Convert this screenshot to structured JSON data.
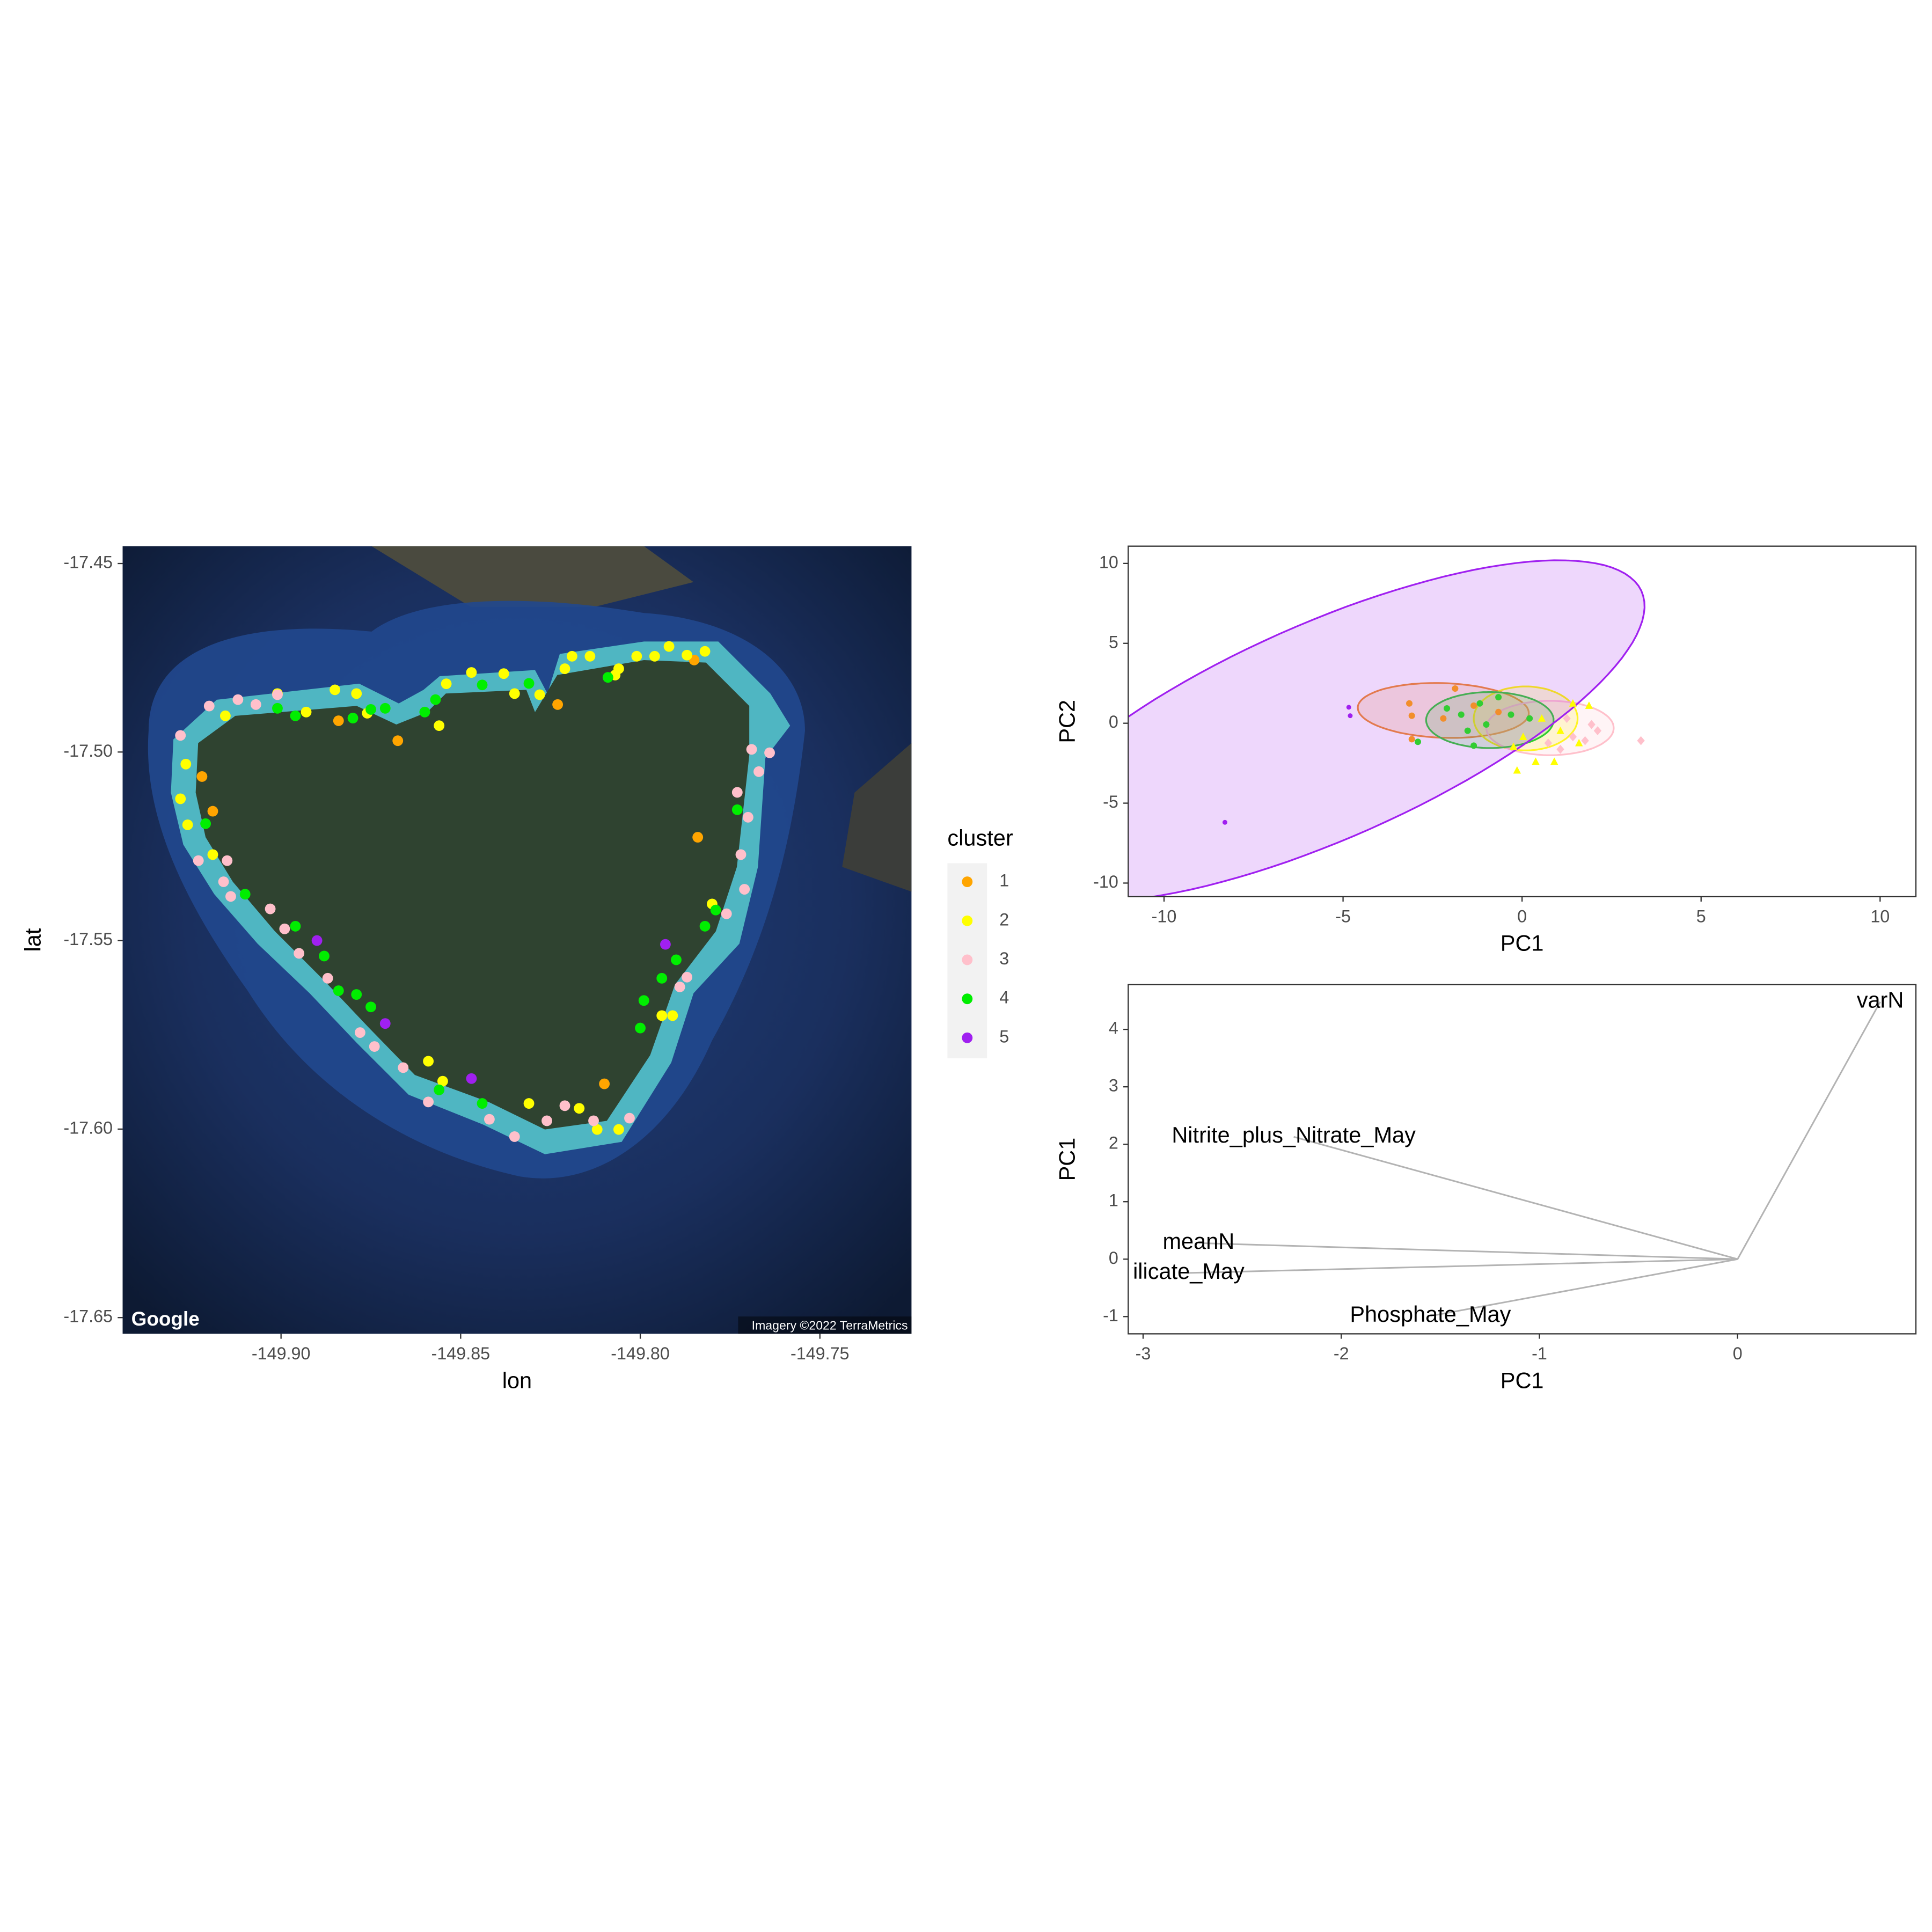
{
  "chart_data": [
    {
      "type": "scatter",
      "x_label": "lon",
      "y_label": "lat",
      "xlim": [
        -149.9441,
        -149.7245
      ],
      "ylim": [
        -17.6543,
        -17.4454
      ],
      "xticks": [
        {
          "value": -149.9,
          "label": "-149.90"
        },
        -149.85,
        {
          "value": -149.8,
          "label": "-149.80"
        },
        -149.75
      ],
      "yticks": [
        -17.45,
        {
          "value": -17.5,
          "label": "-17.50"
        },
        -17.55,
        {
          "value": -17.6,
          "label": "-17.60"
        },
        -17.65
      ],
      "legend": {
        "title": "cluster",
        "position": "right"
      },
      "credits": [
        "Google",
        "Imagery ©2022 TerraMetrics"
      ],
      "series": [
        {
          "name": "1",
          "color": "#ffa500",
          "x": [
            -149.884,
            -149.8675,
            -149.922,
            -149.919,
            -149.823,
            -149.784,
            -149.81,
            -149.785
          ],
          "y": [
            -17.4917,
            -17.497,
            -17.5065,
            -17.5157,
            -17.4874,
            -17.5226,
            -17.588,
            -17.4756
          ]
        },
        {
          "name": "2",
          "color": "#ffff00",
          "x": [
            -149.9155,
            -149.901,
            -149.893,
            -149.885,
            -149.879,
            -149.876,
            -149.9265,
            -149.928,
            -149.926,
            -149.919,
            -149.854,
            -149.847,
            -149.838,
            -149.835,
            -149.856,
            -149.828,
            -149.821,
            -149.819,
            -149.814,
            -149.806,
            -149.801,
            -149.796,
            -149.792,
            -149.782,
            -149.807,
            -149.787,
            -149.794,
            -149.791,
            -149.78,
            -149.855,
            -149.859,
            -149.831,
            -149.817,
            -149.812,
            -149.806
          ],
          "y": [
            -17.4904,
            -17.4845,
            -17.4894,
            -17.4835,
            -17.4845,
            -17.4897,
            -17.5032,
            -17.5124,
            -17.5193,
            -17.5272,
            -17.4819,
            -17.4789,
            -17.4792,
            -17.4845,
            -17.493,
            -17.4848,
            -17.4779,
            -17.4746,
            -17.4746,
            -17.4779,
            -17.4746,
            -17.4746,
            -17.472,
            -17.4733,
            -17.4796,
            -17.4743,
            -17.5699,
            -17.5699,
            -17.5403,
            -17.5873,
            -17.582,
            -17.5932,
            -17.5945,
            -17.6001,
            -17.6001
          ]
        },
        {
          "name": "3",
          "color": "#ffc0cb",
          "x": [
            -149.928,
            -149.92,
            -149.912,
            -149.907,
            -149.901,
            -149.923,
            -149.915,
            -149.916,
            -149.914,
            -149.903,
            -149.899,
            -149.895,
            -149.887,
            -149.878,
            -149.874,
            -149.866,
            -149.859,
            -149.842,
            -149.835,
            -149.826,
            -149.821,
            -149.813,
            -149.803,
            -149.789,
            -149.787,
            -149.776,
            -149.771,
            -149.773,
            -149.77,
            -149.769,
            -149.764,
            -149.767,
            -149.772
          ],
          "y": [
            -17.4956,
            -17.4878,
            -17.4861,
            -17.4874,
            -17.4848,
            -17.5288,
            -17.5288,
            -17.5344,
            -17.5383,
            -17.5416,
            -17.5469,
            -17.5534,
            -17.56,
            -17.5744,
            -17.5781,
            -17.5837,
            -17.5928,
            -17.5974,
            -17.602,
            -17.5978,
            -17.5938,
            -17.5978,
            -17.5971,
            -17.5623,
            -17.5597,
            -17.5429,
            -17.5364,
            -17.5107,
            -17.5173,
            -17.4993,
            -17.5002,
            -17.5052,
            -17.5272
          ]
        },
        {
          "name": "4",
          "color": "#00ee00",
          "x": [
            -149.901,
            -149.896,
            -149.88,
            -149.875,
            -149.871,
            -149.86,
            -149.857,
            -149.844,
            -149.831,
            -149.809,
            -149.921,
            -149.91,
            -149.896,
            -149.888,
            -149.884,
            -149.879,
            -149.875,
            -149.856,
            -149.844,
            -149.8,
            -149.799,
            -149.794,
            -149.79,
            -149.782,
            -149.779,
            -149.773
          ],
          "y": [
            -17.4884,
            -17.4904,
            -17.491,
            -17.4887,
            -17.4884,
            -17.4894,
            -17.4861,
            -17.4822,
            -17.4818,
            -17.4802,
            -17.519,
            -17.5377,
            -17.5462,
            -17.5541,
            -17.5633,
            -17.5643,
            -17.5676,
            -17.5896,
            -17.5932,
            -17.5732,
            -17.5659,
            -17.56,
            -17.5551,
            -17.5462,
            -17.5419,
            -17.5153
          ]
        },
        {
          "name": "5",
          "color": "#a020f0",
          "x": [
            -149.89,
            -149.871,
            -149.847,
            -149.793
          ],
          "y": [
            -17.55,
            -17.572,
            -17.5866,
            -17.551
          ]
        }
      ]
    },
    {
      "type": "scatter",
      "x_label": "PC1",
      "y_label": "PC2",
      "xlim": [
        -11,
        11
      ],
      "ylim": [
        -10.85,
        11.08
      ],
      "xticks": [
        -10,
        -5,
        0,
        5,
        10
      ],
      "yticks": [
        -10,
        -5,
        0,
        5,
        10
      ],
      "series": [
        {
          "color": "#f28e2b",
          "shape": "circle",
          "x": [
            -3.15,
            -1.87,
            -3.08,
            -3.08,
            -2.2,
            -1.35,
            -0.66
          ],
          "y": [
            1.24,
            2.17,
            0.47,
            -1.0,
            0.3,
            1.1,
            0.7
          ],
          "ellipse": {
            "center": [
              -2.2,
              0.8
            ],
            "axes": [
              2.4,
              1.7
            ],
            "angle": -8
          }
        },
        {
          "color": "#ffff00",
          "shape": "triangle",
          "x": [
            -0.24,
            -0.14,
            0.38,
            0.9,
            1.42,
            1.87,
            1.07,
            1.59,
            0.55,
            0.03
          ],
          "y": [
            -1.47,
            -2.95,
            -2.4,
            -2.4,
            1.24,
            1.1,
            -0.47,
            -1.24,
            0.3,
            -0.85
          ],
          "ellipse": {
            "center": [
              0.1,
              0.3
            ],
            "axes": [
              1.45,
              2.0
            ],
            "angle": 0
          }
        },
        {
          "color": "#ffc0cb",
          "shape": "diamond",
          "x": [
            3.32,
            1.76,
            2.11,
            1.42,
            1.07,
            0.73,
            1.94,
            1.25
          ],
          "y": [
            -1.09,
            -1.09,
            -0.47,
            -0.85,
            -1.63,
            -1.24,
            -0.08,
            0.3
          ],
          "ellipse": {
            "center": [
              0.78,
              -0.3
            ],
            "axes": [
              1.78,
              1.7
            ],
            "angle": 0
          }
        },
        {
          "color": "#32cd32",
          "shape": "circle",
          "x": [
            -2.91,
            -1.35,
            -2.1,
            -1.7,
            -1.18,
            -0.66,
            -1.0,
            -0.31,
            0.21,
            -1.52
          ],
          "y": [
            -1.16,
            -1.4,
            0.93,
            0.54,
            1.24,
            1.63,
            -0.08,
            0.54,
            0.3,
            -0.47
          ],
          "ellipse": {
            "center": [
              -0.9,
              0.2
            ],
            "axes": [
              1.78,
              1.75
            ],
            "angle": 0
          }
        },
        {
          "color": "#a020f0",
          "shape": "dot",
          "x": [
            -4.84,
            -4.8,
            -8.3
          ],
          "y": [
            1.0,
            0.47,
            -6.2
          ],
          "ellipse": {
            "center": [
              -5.5,
              -0.5
            ],
            "axes": [
              13,
              5
            ],
            "angle": 52
          }
        }
      ]
    },
    {
      "type": "vector",
      "x_label": "PC1",
      "y_label": "PC1",
      "color": "#b3b3b3",
      "xlim": [
        -3.075,
        0.9
      ],
      "ylim": [
        -1.3,
        4.78
      ],
      "xticks": [
        -3,
        -2,
        -1,
        0
      ],
      "yticks": [
        -1,
        0,
        1,
        2,
        3,
        4
      ],
      "labels": [
        "varN",
        "Nitrite_plus_Nitrate_May",
        "meanN",
        "ilicate_May",
        "Phosphate_May"
      ],
      "x": [
        0.72,
        -2.24,
        -2.72,
        -2.77,
        -1.55
      ],
      "y": [
        4.48,
        2.13,
        0.28,
        -0.24,
        -0.99
      ]
    }
  ]
}
